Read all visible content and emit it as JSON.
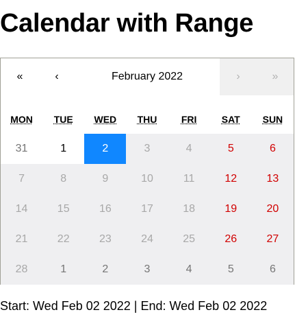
{
  "page": {
    "title": "Calendar with Range"
  },
  "nav": {
    "prev2": "«",
    "prev": "‹",
    "label": "February 2022",
    "next": "›",
    "next2": "»"
  },
  "weekdays": [
    "MON",
    "TUE",
    "WED",
    "THU",
    "FRI",
    "SAT",
    "SUN"
  ],
  "days": [
    {
      "label": "31",
      "state": "outside-white"
    },
    {
      "label": "1",
      "state": "in-month-white"
    },
    {
      "label": "2",
      "state": "active"
    },
    {
      "label": "3",
      "state": "disabled"
    },
    {
      "label": "4",
      "state": "disabled"
    },
    {
      "label": "5",
      "state": "weekend"
    },
    {
      "label": "6",
      "state": "weekend"
    },
    {
      "label": "7",
      "state": "disabled"
    },
    {
      "label": "8",
      "state": "disabled"
    },
    {
      "label": "9",
      "state": "disabled"
    },
    {
      "label": "10",
      "state": "disabled"
    },
    {
      "label": "11",
      "state": "disabled"
    },
    {
      "label": "12",
      "state": "weekend"
    },
    {
      "label": "13",
      "state": "weekend"
    },
    {
      "label": "14",
      "state": "disabled"
    },
    {
      "label": "15",
      "state": "disabled"
    },
    {
      "label": "16",
      "state": "disabled"
    },
    {
      "label": "17",
      "state": "disabled"
    },
    {
      "label": "18",
      "state": "disabled"
    },
    {
      "label": "19",
      "state": "weekend"
    },
    {
      "label": "20",
      "state": "weekend"
    },
    {
      "label": "21",
      "state": "disabled"
    },
    {
      "label": "22",
      "state": "disabled"
    },
    {
      "label": "23",
      "state": "disabled"
    },
    {
      "label": "24",
      "state": "disabled"
    },
    {
      "label": "25",
      "state": "disabled"
    },
    {
      "label": "26",
      "state": "weekend"
    },
    {
      "label": "27",
      "state": "weekend"
    },
    {
      "label": "28",
      "state": "disabled"
    },
    {
      "label": "1",
      "state": "outside"
    },
    {
      "label": "2",
      "state": "outside"
    },
    {
      "label": "3",
      "state": "outside"
    },
    {
      "label": "4",
      "state": "outside"
    },
    {
      "label": "5",
      "state": "outside"
    },
    {
      "label": "6",
      "state": "outside"
    }
  ],
  "status": "Start: Wed Feb 02 2022 | End: Wed Feb 02 2022",
  "colors": {
    "active": "#1087ff",
    "weekend": "#d10000",
    "tile": "#efeff1"
  }
}
